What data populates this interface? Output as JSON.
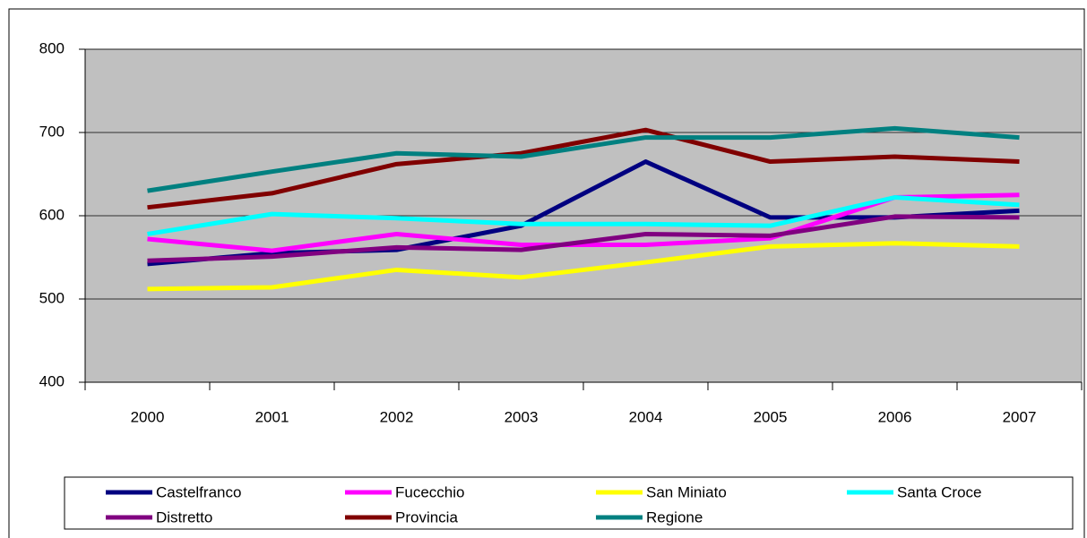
{
  "chart_data": {
    "type": "line",
    "categories": [
      "2000",
      "2001",
      "2002",
      "2003",
      "2004",
      "2005",
      "2006",
      "2007"
    ],
    "series": [
      {
        "name": "Castelfranco",
        "color": "#000080",
        "values": [
          542,
          555,
          559,
          588,
          665,
          598,
          598,
          606
        ]
      },
      {
        "name": "Fucecchio",
        "color": "#ff00ff",
        "values": [
          572,
          558,
          578,
          565,
          565,
          573,
          622,
          625
        ]
      },
      {
        "name": "San Miniato",
        "color": "#ffff00",
        "values": [
          512,
          514,
          535,
          526,
          544,
          563,
          567,
          563
        ]
      },
      {
        "name": "Santa Croce",
        "color": "#00ffff",
        "values": [
          578,
          602,
          597,
          590,
          590,
          588,
          622,
          613
        ]
      },
      {
        "name": "Distretto",
        "color": "#800080",
        "values": [
          546,
          551,
          562,
          559,
          578,
          576,
          599,
          598
        ]
      },
      {
        "name": "Provincia",
        "color": "#800000",
        "values": [
          610,
          627,
          662,
          675,
          703,
          665,
          671,
          665
        ]
      },
      {
        "name": "Regione",
        "color": "#008080",
        "values": [
          630,
          653,
          675,
          671,
          694,
          694,
          705,
          694
        ]
      }
    ],
    "ylim": [
      400,
      800
    ],
    "yticks": [
      400,
      500,
      600,
      700,
      800
    ],
    "grid": true,
    "legend": "bottom"
  }
}
